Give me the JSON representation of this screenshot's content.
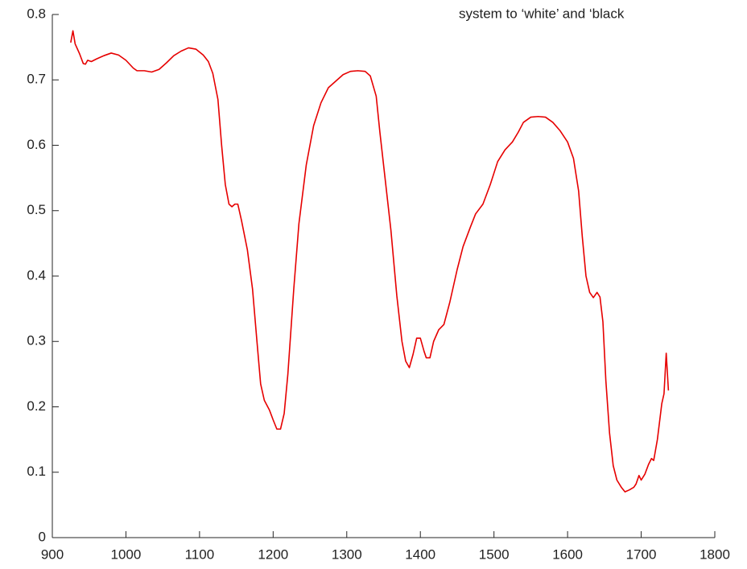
{
  "chart_data": {
    "type": "line",
    "annotation": "system to ‘white’ and ‘black",
    "x": [
      925,
      928,
      931,
      937,
      942,
      945,
      948,
      953,
      960,
      970,
      980,
      990,
      1000,
      1010,
      1015,
      1025,
      1035,
      1045,
      1055,
      1065,
      1075,
      1085,
      1095,
      1105,
      1112,
      1118,
      1125,
      1130,
      1135,
      1140,
      1144,
      1148,
      1152,
      1157,
      1165,
      1172,
      1178,
      1183,
      1188,
      1195,
      1200,
      1205,
      1210,
      1215,
      1220,
      1228,
      1235,
      1245,
      1255,
      1265,
      1275,
      1285,
      1295,
      1305,
      1315,
      1325,
      1332,
      1340,
      1345,
      1352,
      1360,
      1368,
      1375,
      1380,
      1385,
      1390,
      1395,
      1400,
      1405,
      1408,
      1413,
      1418,
      1425,
      1432,
      1440,
      1450,
      1458,
      1468,
      1475,
      1485,
      1495,
      1505,
      1515,
      1525,
      1533,
      1540,
      1550,
      1560,
      1570,
      1580,
      1590,
      1600,
      1608,
      1615,
      1620,
      1625,
      1630,
      1635,
      1640,
      1644,
      1648,
      1652,
      1657,
      1662,
      1667,
      1673,
      1678,
      1684,
      1690,
      1693,
      1697,
      1700,
      1705,
      1710,
      1714,
      1717,
      1722,
      1728,
      1731,
      1734,
      1737
    ],
    "series": [
      {
        "color": "#e60000",
        "values": [
          0.757,
          0.775,
          0.755,
          0.74,
          0.725,
          0.724,
          0.73,
          0.728,
          0.732,
          0.737,
          0.741,
          0.738,
          0.73,
          0.718,
          0.714,
          0.714,
          0.712,
          0.716,
          0.726,
          0.737,
          0.744,
          0.749,
          0.747,
          0.738,
          0.728,
          0.71,
          0.67,
          0.6,
          0.54,
          0.51,
          0.506,
          0.51,
          0.51,
          0.485,
          0.44,
          0.38,
          0.3,
          0.235,
          0.21,
          0.195,
          0.18,
          0.166,
          0.166,
          0.19,
          0.25,
          0.38,
          0.48,
          0.57,
          0.63,
          0.665,
          0.688,
          0.698,
          0.708,
          0.713,
          0.714,
          0.713,
          0.706,
          0.675,
          0.62,
          0.55,
          0.47,
          0.37,
          0.3,
          0.27,
          0.26,
          0.28,
          0.305,
          0.305,
          0.285,
          0.275,
          0.275,
          0.3,
          0.318,
          0.326,
          0.36,
          0.41,
          0.445,
          0.475,
          0.495,
          0.51,
          0.54,
          0.575,
          0.593,
          0.605,
          0.62,
          0.635,
          0.643,
          0.644,
          0.643,
          0.635,
          0.622,
          0.605,
          0.58,
          0.53,
          0.46,
          0.4,
          0.375,
          0.367,
          0.375,
          0.368,
          0.33,
          0.24,
          0.16,
          0.11,
          0.088,
          0.077,
          0.07,
          0.073,
          0.077,
          0.082,
          0.095,
          0.088,
          0.097,
          0.112,
          0.121,
          0.118,
          0.15,
          0.205,
          0.22,
          0.282,
          0.225
        ]
      }
    ],
    "xlim": [
      900,
      1800
    ],
    "xticks": [
      900,
      1000,
      1100,
      1200,
      1300,
      1400,
      1500,
      1600,
      1700,
      1800
    ],
    "ylim": [
      0,
      0.8
    ],
    "yticks": [
      0,
      0.1,
      0.2,
      0.3,
      0.4,
      0.5,
      0.6,
      0.7,
      0.8
    ],
    "grid": false
  }
}
